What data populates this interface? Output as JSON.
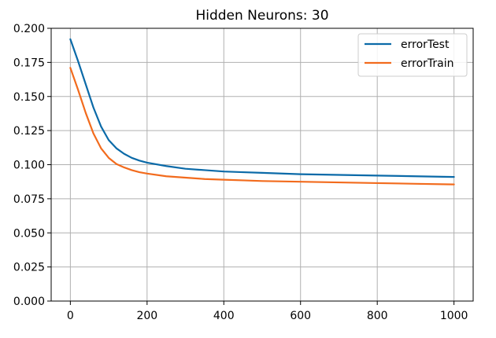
{
  "chart_data": {
    "type": "line",
    "title": "Hidden Neurons: 30",
    "xlabel": "",
    "ylabel": "",
    "xlim": [
      -50,
      1050
    ],
    "ylim": [
      0,
      0.2
    ],
    "x_ticks": [
      0,
      200,
      400,
      600,
      800,
      1000
    ],
    "x_tick_labels": [
      "0",
      "200",
      "400",
      "600",
      "800",
      "1000"
    ],
    "y_ticks": [
      0,
      0.025,
      0.05,
      0.075,
      0.1,
      0.125,
      0.15,
      0.175,
      0.2
    ],
    "y_tick_labels": [
      "0.000",
      "0.025",
      "0.050",
      "0.075",
      "0.100",
      "0.125",
      "0.150",
      "0.175",
      "0.200"
    ],
    "grid": true,
    "legend_position": "top-right",
    "x": [
      0,
      20,
      40,
      60,
      80,
      100,
      120,
      140,
      160,
      180,
      200,
      250,
      300,
      350,
      400,
      450,
      500,
      600,
      700,
      800,
      900,
      1000
    ],
    "series": [
      {
        "name": "errorTest",
        "color": "#0b6aa8",
        "values": [
          0.192,
          0.176,
          0.159,
          0.142,
          0.128,
          0.118,
          0.112,
          0.108,
          0.105,
          0.103,
          0.1015,
          0.099,
          0.097,
          0.096,
          0.095,
          0.0945,
          0.094,
          0.093,
          0.0925,
          0.092,
          0.0915,
          0.091
        ]
      },
      {
        "name": "errorTrain",
        "color": "#f26b1d",
        "values": [
          0.171,
          0.155,
          0.138,
          0.123,
          0.112,
          0.105,
          0.1005,
          0.098,
          0.096,
          0.0945,
          0.0935,
          0.0915,
          0.0905,
          0.0895,
          0.089,
          0.0885,
          0.088,
          0.0875,
          0.087,
          0.0865,
          0.086,
          0.0855
        ]
      }
    ]
  }
}
